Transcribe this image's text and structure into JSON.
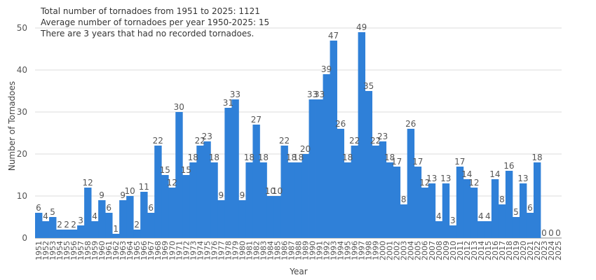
{
  "notes": [
    "Total number of tornadoes from 1951 to 2025: 1121",
    "Average number of tornadoes per year 1950-2025: 15",
    "There are 3 years that had no recorded tornadoes."
  ],
  "chart_data": {
    "type": "bar",
    "title": "",
    "xlabel": "Year",
    "ylabel": "Number of Tornadoes",
    "ylim": [
      0,
      50
    ],
    "yticks": [
      0,
      10,
      20,
      30,
      40,
      50
    ],
    "grid": true,
    "legend": "none",
    "bar_color": "#2f80d8",
    "categories": [
      "1951",
      "1952",
      "1953",
      "1954",
      "1955",
      "1956",
      "1957",
      "1958",
      "1959",
      "1960",
      "1961",
      "1962",
      "1963",
      "1964",
      "1965",
      "1966",
      "1967",
      "1968",
      "1969",
      "1970",
      "1971",
      "1972",
      "1973",
      "1974",
      "1975",
      "1976",
      "1977",
      "1978",
      "1979",
      "1980",
      "1981",
      "1982",
      "1983",
      "1984",
      "1985",
      "1986",
      "1987",
      "1988",
      "1989",
      "1990",
      "1991",
      "1992",
      "1993",
      "1994",
      "1995",
      "1996",
      "1997",
      "1998",
      "1999",
      "2000",
      "2001",
      "2002",
      "2003",
      "2004",
      "2005",
      "2006",
      "2007",
      "2008",
      "2009",
      "2010",
      "2011",
      "2012",
      "2013",
      "2014",
      "2015",
      "2016",
      "2017",
      "2018",
      "2019",
      "2020",
      "2021",
      "2022",
      "2023",
      "2024",
      "2025"
    ],
    "values": [
      6,
      4,
      5,
      2,
      2,
      2,
      3,
      12,
      4,
      9,
      6,
      1,
      9,
      10,
      2,
      11,
      6,
      22,
      15,
      12,
      30,
      15,
      18,
      22,
      23,
      18,
      9,
      31,
      33,
      9,
      18,
      27,
      18,
      10,
      10,
      22,
      18,
      18,
      20,
      33,
      33,
      39,
      47,
      26,
      18,
      22,
      49,
      35,
      22,
      23,
      18,
      17,
      8,
      26,
      17,
      12,
      13,
      4,
      13,
      3,
      17,
      14,
      12,
      4,
      4,
      14,
      8,
      16,
      5,
      13,
      6,
      18,
      0,
      0,
      0
    ]
  }
}
